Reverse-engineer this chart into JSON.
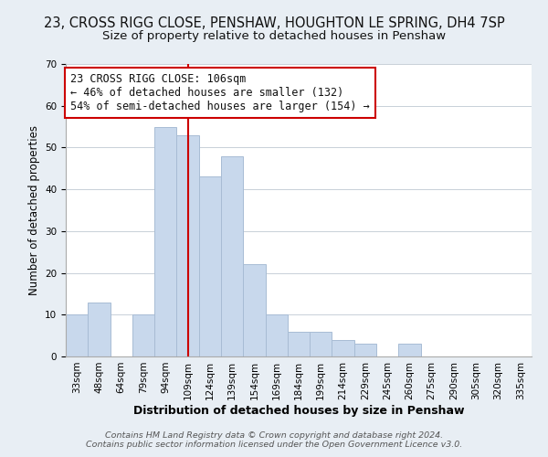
{
  "title": "23, CROSS RIGG CLOSE, PENSHAW, HOUGHTON LE SPRING, DH4 7SP",
  "subtitle": "Size of property relative to detached houses in Penshaw",
  "xlabel": "Distribution of detached houses by size in Penshaw",
  "ylabel": "Number of detached properties",
  "bar_color": "#c8d8ec",
  "bar_edgecolor": "#a8bcd4",
  "bin_labels": [
    "33sqm",
    "48sqm",
    "64sqm",
    "79sqm",
    "94sqm",
    "109sqm",
    "124sqm",
    "139sqm",
    "154sqm",
    "169sqm",
    "184sqm",
    "199sqm",
    "214sqm",
    "229sqm",
    "245sqm",
    "260sqm",
    "275sqm",
    "290sqm",
    "305sqm",
    "320sqm",
    "335sqm"
  ],
  "bar_heights": [
    10,
    13,
    0,
    10,
    55,
    53,
    43,
    48,
    22,
    10,
    6,
    6,
    4,
    3,
    0,
    3,
    0,
    0,
    0,
    0,
    0
  ],
  "vline_x": 5,
  "vline_color": "#cc0000",
  "annotation_line1": "23 CROSS RIGG CLOSE: 106sqm",
  "annotation_line2": "← 46% of detached houses are smaller (132)",
  "annotation_line3": "54% of semi-detached houses are larger (154) →",
  "annotation_box_color": "#ffffff",
  "annotation_box_edgecolor": "#cc0000",
  "ylim": [
    0,
    70
  ],
  "yticks": [
    0,
    10,
    20,
    30,
    40,
    50,
    60,
    70
  ],
  "footer_line1": "Contains HM Land Registry data © Crown copyright and database right 2024.",
  "footer_line2": "Contains public sector information licensed under the Open Government Licence v3.0.",
  "background_color": "#e8eef4",
  "plot_background_color": "#ffffff",
  "grid_color": "#c8d0d8",
  "title_fontsize": 10.5,
  "subtitle_fontsize": 9.5,
  "xlabel_fontsize": 9,
  "ylabel_fontsize": 8.5,
  "tick_fontsize": 7.5,
  "annotation_fontsize": 8.5,
  "footer_fontsize": 6.8
}
